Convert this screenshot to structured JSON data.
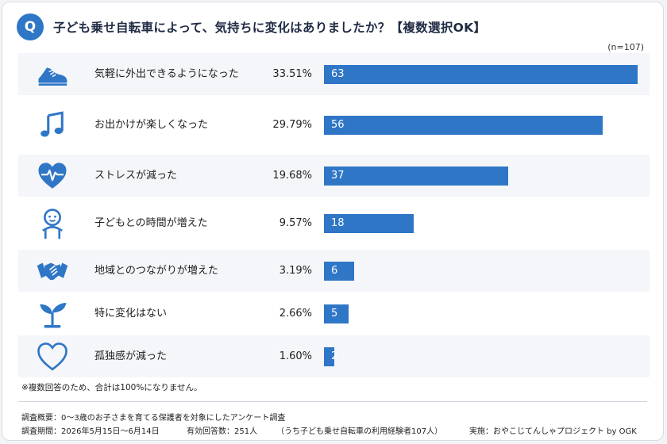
{
  "question_badge": "Q",
  "title": "子ども乗せ自転車によって、気持ちに変化はありましたか？【複数選択OK】",
  "sample_note": "(n=107)",
  "colors": {
    "accent": "#2f76c7",
    "row_shade": "#f4f6f9"
  },
  "chart_data": {
    "type": "bar",
    "orientation": "horizontal",
    "categories": [
      "気軽に外出できるようになった",
      "お出かけが楽しくなった",
      "ストレスが減った",
      "子どもとの時間が増えた",
      "地域とのつながりが増えた",
      "特に変化はない",
      "孤独感が減った"
    ],
    "values": [
      63,
      56,
      37,
      18,
      6,
      5,
      2
    ],
    "percent_labels": [
      "33.51%",
      "29.79%",
      "19.68%",
      "9.57%",
      "3.19%",
      "2.66%",
      "1.60%"
    ],
    "icons": [
      "sneaker-icon",
      "music-note-icon",
      "heart-pulse-icon",
      "baby-icon",
      "handshake-icon",
      "sprout-icon",
      "heart-outline-icon"
    ],
    "grid": false
  },
  "footnote": "※複数回答のため、合計は100%になりません。",
  "meta": {
    "overview": "調査概要：0〜3歳のお子さまを育てる保護者を対象にしたアンケート調査",
    "period": "調査期間：2026年5月15日〜6月14日",
    "responses": "有効回答数：251人",
    "experienced": "（うち子ども乗せ自転車の利用経験者107人）",
    "organizer": "実施：おやこじてんしゃプロジェクト by OGK"
  }
}
